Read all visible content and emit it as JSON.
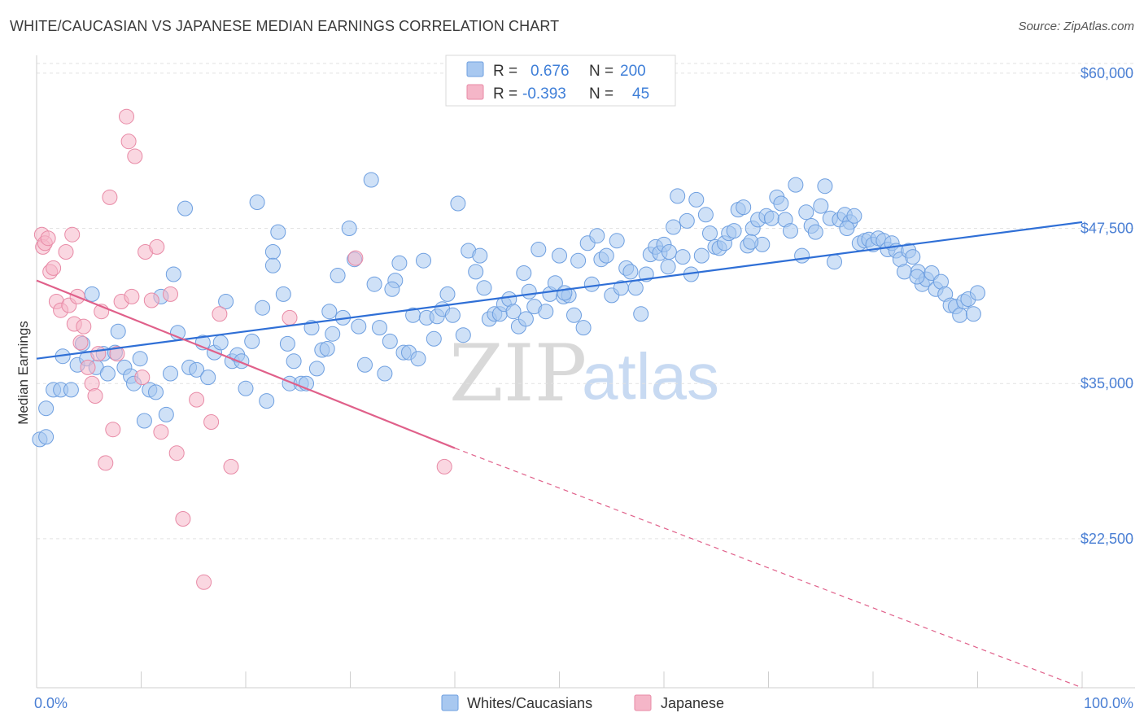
{
  "header": {
    "title": "WHITE/CAUCASIAN VS JAPANESE MEDIAN EARNINGS CORRELATION CHART",
    "source": "Source: ZipAtlas.com"
  },
  "watermark": {
    "zip": "ZIP",
    "atlas": "atlas"
  },
  "legend": {
    "rows": [
      {
        "r_label": "R =",
        "r_value": "0.676",
        "n_label": "N =",
        "n_value": "200",
        "color": "#a8c8f0"
      },
      {
        "r_label": "R =",
        "r_value": "-0.393",
        "n_label": "N =",
        "n_value": "45",
        "color": "#f5b6c8"
      }
    ]
  },
  "bottom_legend": {
    "items": [
      "Whites/Caucasians",
      "Japanese"
    ]
  },
  "chart_data": {
    "type": "scatter",
    "title": "WHITE/CAUCASIAN VS JAPANESE MEDIAN EARNINGS CORRELATION CHART",
    "ylabel": "Median Earnings",
    "xlabel": "",
    "x_tick_labels": [
      "0.0%",
      "100.0%"
    ],
    "y_tick_labels": [
      "$22,500",
      "$35,000",
      "$47,500",
      "$60,000"
    ],
    "y_ticks": [
      22500,
      35000,
      47500,
      60000
    ],
    "xlim": [
      0,
      100
    ],
    "ylim": [
      10500,
      61300
    ],
    "grid": true,
    "legend_position": "top-center",
    "series": [
      {
        "name": "Whites/Caucasians",
        "color": "#a8c8f0",
        "edge": "#6e9fe0",
        "trend": {
          "x": [
            0,
            100
          ],
          "y": [
            37000,
            48000
          ],
          "color": "#2f6fd6"
        },
        "points": [
          [
            0.3,
            30.5
          ],
          [
            0.9,
            30.7
          ],
          [
            0.9,
            33
          ],
          [
            1.6,
            34.5
          ],
          [
            2.3,
            34.5
          ],
          [
            2.5,
            37.2
          ],
          [
            3.3,
            34.5
          ],
          [
            3.9,
            36.5
          ],
          [
            4.4,
            38.2
          ],
          [
            4.8,
            37
          ],
          [
            5.3,
            42.2
          ],
          [
            5.7,
            36.3
          ],
          [
            6.4,
            37.4
          ],
          [
            6.8,
            35.8
          ],
          [
            7.5,
            37.5
          ],
          [
            7.8,
            39.2
          ],
          [
            8.4,
            36.3
          ],
          [
            9.0,
            35.6
          ],
          [
            9.3,
            35
          ],
          [
            9.9,
            37
          ],
          [
            10.3,
            32
          ],
          [
            10.8,
            34.5
          ],
          [
            11.4,
            34.3
          ],
          [
            11.9,
            42
          ],
          [
            12.4,
            32.5
          ],
          [
            12.8,
            35.8
          ],
          [
            13.1,
            43.8
          ],
          [
            13.5,
            39.1
          ],
          [
            14.2,
            49.1
          ],
          [
            14.6,
            36.3
          ],
          [
            15.3,
            36.1
          ],
          [
            15.9,
            38.3
          ],
          [
            16.4,
            35.5
          ],
          [
            17.0,
            37.5
          ],
          [
            17.6,
            38.3
          ],
          [
            18.1,
            41.6
          ],
          [
            18.7,
            36.8
          ],
          [
            19.2,
            37.3
          ],
          [
            19.6,
            36.8
          ],
          [
            20.0,
            34.6
          ],
          [
            20.6,
            38.4
          ],
          [
            21.1,
            49.6
          ],
          [
            21.6,
            41.1
          ],
          [
            22.0,
            33.6
          ],
          [
            22.6,
            45.6
          ],
          [
            23.1,
            47.2
          ],
          [
            23.6,
            42.2
          ],
          [
            24.2,
            35
          ],
          [
            24.6,
            36.8
          ],
          [
            25.3,
            35
          ],
          [
            25.8,
            35
          ],
          [
            26.3,
            39.5
          ],
          [
            26.8,
            36.2
          ],
          [
            27.3,
            37.7
          ],
          [
            27.8,
            37.8
          ],
          [
            28.3,
            39
          ],
          [
            28.8,
            43.7
          ],
          [
            29.3,
            40.3
          ],
          [
            29.9,
            47.5
          ],
          [
            30.4,
            45
          ],
          [
            30.8,
            39.6
          ],
          [
            31.4,
            36.5
          ],
          [
            32.0,
            51.4
          ],
          [
            32.3,
            43
          ],
          [
            32.8,
            39.5
          ],
          [
            33.3,
            35.8
          ],
          [
            33.8,
            38.4
          ],
          [
            34.3,
            43.3
          ],
          [
            34.7,
            44.7
          ],
          [
            35.1,
            37.5
          ],
          [
            35.6,
            37.5
          ],
          [
            36.0,
            40.5
          ],
          [
            36.5,
            37
          ],
          [
            37.0,
            44.9
          ],
          [
            37.3,
            40.3
          ],
          [
            38.0,
            38.6
          ],
          [
            38.3,
            40.4
          ],
          [
            38.8,
            41
          ],
          [
            39.3,
            42.2
          ],
          [
            39.8,
            40.5
          ],
          [
            40.3,
            49.5
          ],
          [
            40.8,
            38.9
          ],
          [
            41.3,
            45.7
          ],
          [
            42.0,
            44
          ],
          [
            42.4,
            45.3
          ],
          [
            42.8,
            42.7
          ],
          [
            43.3,
            40.2
          ],
          [
            43.8,
            40.6
          ],
          [
            44.3,
            40.6
          ],
          [
            44.7,
            41.4
          ],
          [
            45.2,
            41.8
          ],
          [
            45.6,
            40.8
          ],
          [
            46.1,
            39.6
          ],
          [
            46.6,
            43.9
          ],
          [
            47.1,
            42.4
          ],
          [
            47.6,
            41.2
          ],
          [
            48.0,
            45.8
          ],
          [
            48.7,
            40.8
          ],
          [
            49.1,
            42.2
          ],
          [
            49.6,
            43.1
          ],
          [
            50.0,
            45.3
          ],
          [
            50.4,
            42
          ],
          [
            50.9,
            42.1
          ],
          [
            51.4,
            40.5
          ],
          [
            51.8,
            44.9
          ],
          [
            52.3,
            39.5
          ],
          [
            52.7,
            46.3
          ],
          [
            53.1,
            43
          ],
          [
            53.6,
            46.9
          ],
          [
            54.0,
            45
          ],
          [
            54.5,
            45.3
          ],
          [
            55.0,
            42.1
          ],
          [
            55.5,
            46.5
          ],
          [
            55.9,
            42.7
          ],
          [
            56.4,
            44.3
          ],
          [
            56.8,
            44
          ],
          [
            57.3,
            42.7
          ],
          [
            57.8,
            40.6
          ],
          [
            58.3,
            43.8
          ],
          [
            58.7,
            45.4
          ],
          [
            59.2,
            46
          ],
          [
            59.6,
            45.5
          ],
          [
            60.0,
            46.2
          ],
          [
            60.4,
            44.4
          ],
          [
            60.9,
            47.6
          ],
          [
            61.3,
            50.1
          ],
          [
            61.8,
            45.2
          ],
          [
            62.2,
            48.1
          ],
          [
            62.6,
            43.8
          ],
          [
            63.1,
            49.8
          ],
          [
            63.6,
            45.3
          ],
          [
            64.0,
            48.6
          ],
          [
            64.4,
            47.1
          ],
          [
            64.9,
            46
          ],
          [
            65.3,
            45.9
          ],
          [
            65.8,
            46.3
          ],
          [
            66.2,
            47.1
          ],
          [
            66.7,
            47.3
          ],
          [
            67.1,
            49
          ],
          [
            67.6,
            49.2
          ],
          [
            68.0,
            46.1
          ],
          [
            68.5,
            47.5
          ],
          [
            69.0,
            48.2
          ],
          [
            69.4,
            46.2
          ],
          [
            69.8,
            48.5
          ],
          [
            70.3,
            48.3
          ],
          [
            70.8,
            50
          ],
          [
            71.2,
            49.5
          ],
          [
            71.6,
            48.2
          ],
          [
            72.1,
            47.3
          ],
          [
            72.6,
            51
          ],
          [
            73.2,
            45.3
          ],
          [
            73.6,
            48.8
          ],
          [
            74.1,
            47.7
          ],
          [
            74.5,
            47.2
          ],
          [
            75.0,
            49.3
          ],
          [
            75.4,
            50.9
          ],
          [
            75.9,
            48.3
          ],
          [
            76.3,
            44.8
          ],
          [
            76.8,
            48.2
          ],
          [
            77.3,
            48.6
          ],
          [
            77.8,
            48
          ],
          [
            78.2,
            48.5
          ],
          [
            78.7,
            46.3
          ],
          [
            79.2,
            46.5
          ],
          [
            79.6,
            46.6
          ],
          [
            80.0,
            46.2
          ],
          [
            80.5,
            46.7
          ],
          [
            81.0,
            46.5
          ],
          [
            81.4,
            45.8
          ],
          [
            81.8,
            46.3
          ],
          [
            82.2,
            45.7
          ],
          [
            82.6,
            45
          ],
          [
            83.0,
            44
          ],
          [
            83.4,
            45.7
          ],
          [
            83.8,
            45.2
          ],
          [
            84.3,
            44
          ],
          [
            84.7,
            43
          ],
          [
            85.1,
            43.4
          ],
          [
            85.6,
            43.9
          ],
          [
            86.0,
            42.6
          ],
          [
            86.5,
            43.2
          ],
          [
            86.9,
            42.2
          ],
          [
            87.4,
            41.3
          ],
          [
            87.9,
            41.2
          ],
          [
            88.3,
            40.5
          ],
          [
            88.7,
            41.6
          ],
          [
            89.1,
            41.8
          ],
          [
            89.6,
            40.6
          ],
          [
            90.0,
            42.3
          ],
          [
            22.6,
            44.5
          ],
          [
            34.0,
            42.6
          ],
          [
            50.5,
            42.3
          ],
          [
            60.5,
            45.6
          ],
          [
            77.5,
            47.5
          ],
          [
            24.0,
            38.2
          ],
          [
            28.0,
            40.8
          ],
          [
            46.8,
            40.2
          ],
          [
            68.3,
            46.4
          ],
          [
            84.2,
            43.6
          ]
        ]
      },
      {
        "name": "Japanese",
        "color": "#f5b6c8",
        "edge": "#e88aa6",
        "trend": {
          "x": [
            0,
            40
          ],
          "y": [
            43300,
            29800
          ],
          "color": "#e0608a"
        },
        "trend_extension": {
          "x": [
            40,
            100
          ],
          "y": [
            29800,
            10500
          ],
          "dashed": true
        },
        "points": [
          [
            0.5,
            47
          ],
          [
            0.6,
            46
          ],
          [
            0.8,
            46.3
          ],
          [
            1.1,
            46.7
          ],
          [
            1.3,
            44
          ],
          [
            1.6,
            44.3
          ],
          [
            1.9,
            41.6
          ],
          [
            2.3,
            40.9
          ],
          [
            2.8,
            45.6
          ],
          [
            3.1,
            41.3
          ],
          [
            3.4,
            47
          ],
          [
            3.6,
            39.8
          ],
          [
            3.9,
            42
          ],
          [
            4.2,
            38.3
          ],
          [
            4.5,
            39.6
          ],
          [
            4.9,
            36.3
          ],
          [
            5.3,
            35
          ],
          [
            5.6,
            34
          ],
          [
            5.9,
            37.4
          ],
          [
            6.2,
            40.8
          ],
          [
            6.6,
            28.6
          ],
          [
            7.0,
            50
          ],
          [
            7.3,
            31.3
          ],
          [
            7.7,
            37.4
          ],
          [
            8.1,
            41.6
          ],
          [
            8.6,
            56.5
          ],
          [
            8.8,
            54.5
          ],
          [
            9.1,
            42
          ],
          [
            9.4,
            53.3
          ],
          [
            10.1,
            35.5
          ],
          [
            10.4,
            45.6
          ],
          [
            11.0,
            41.7
          ],
          [
            11.5,
            46
          ],
          [
            11.9,
            31.1
          ],
          [
            12.8,
            42.2
          ],
          [
            13.4,
            29.4
          ],
          [
            14.0,
            24.1
          ],
          [
            15.3,
            33.7
          ],
          [
            16.0,
            19
          ],
          [
            16.7,
            31.9
          ],
          [
            17.5,
            40.6
          ],
          [
            18.6,
            28.3
          ],
          [
            24.2,
            40.3
          ],
          [
            30.5,
            45.1
          ],
          [
            39.0,
            28.3
          ]
        ]
      }
    ]
  }
}
